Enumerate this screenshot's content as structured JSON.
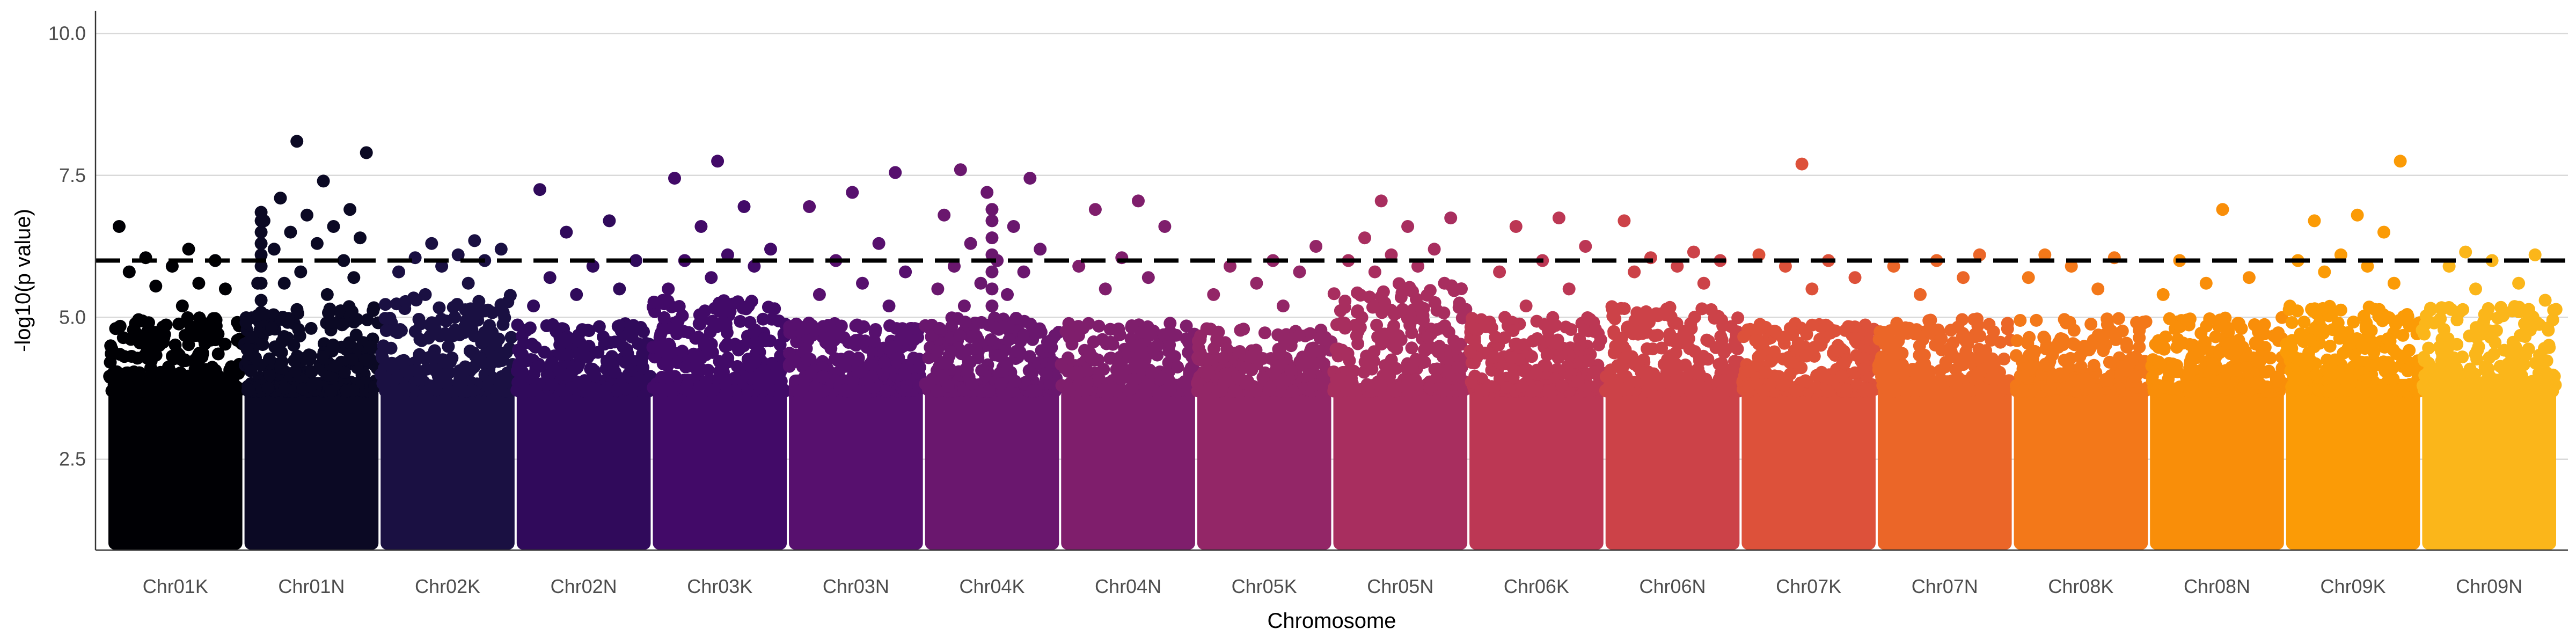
{
  "chart_data": {
    "type": "scatter",
    "title": "",
    "xlabel": "Chromosome",
    "ylabel": "-log10(p value)",
    "ylim": [
      0.9,
      10.4
    ],
    "y_ticks": [
      2.5,
      5.0,
      7.5,
      10.0
    ],
    "y_tick_labels": [
      "2.5",
      "5.0",
      "7.5",
      "10.0"
    ],
    "grid": "horizontal major lines",
    "legend": "none",
    "threshold": {
      "y": 6.0,
      "style": "dashed",
      "color": "#000000"
    },
    "categories": [
      "Chr01K",
      "Chr01N",
      "Chr02K",
      "Chr02N",
      "Chr03K",
      "Chr03N",
      "Chr04K",
      "Chr04N",
      "Chr05K",
      "Chr05N",
      "Chr06K",
      "Chr06N",
      "Chr07K",
      "Chr07N",
      "Chr08K",
      "Chr08N",
      "Chr09K",
      "Chr09N"
    ],
    "colors": [
      "#000004",
      "#0b0924",
      "#1a1042",
      "#300a5b",
      "#420a68",
      "#57106e",
      "#6a176e",
      "#7f1e6c",
      "#932667",
      "#a82e5f",
      "#bc3754",
      "#cc4248",
      "#dd513a",
      "#eb6628",
      "#f37819",
      "#f98e09",
      "#fb9b06",
      "#fbb61a"
    ],
    "series": [
      {
        "name": "Chr01K",
        "upper_cloud_max": 5.0,
        "peaks": [
          6.6,
          6.2,
          6.05,
          6.0,
          5.9,
          5.8,
          5.6,
          5.55,
          5.5,
          5.2
        ]
      },
      {
        "name": "Chr01N",
        "upper_cloud_max": 5.2,
        "peaks": [
          8.1,
          7.9,
          7.4,
          7.1,
          6.9,
          6.8,
          6.7,
          6.6,
          6.5,
          6.4,
          6.3,
          6.2,
          6.0,
          5.8,
          5.6,
          5.4,
          5.6,
          5.7
        ]
      },
      {
        "name": "Chr02K",
        "upper_cloud_max": 5.4,
        "peaks": [
          6.35,
          6.3,
          6.2,
          6.1,
          6.05,
          6.0,
          5.9,
          5.8,
          5.6,
          5.4
        ]
      },
      {
        "name": "Chr02N",
        "upper_cloud_max": 4.9,
        "peaks": [
          7.25,
          6.7,
          6.5,
          6.0,
          5.9,
          5.7,
          5.5,
          5.4,
          5.2
        ]
      },
      {
        "name": "Chr03K",
        "upper_cloud_max": 5.3,
        "peaks": [
          7.75,
          7.45,
          6.95,
          6.6,
          6.2,
          6.1,
          6.0,
          5.9,
          5.7,
          5.5
        ]
      },
      {
        "name": "Chr03N",
        "upper_cloud_max": 4.9,
        "peaks": [
          7.55,
          7.2,
          6.95,
          6.3,
          6.0,
          5.8,
          5.6,
          5.4,
          5.2
        ]
      },
      {
        "name": "Chr04K",
        "upper_cloud_max": 5.0,
        "peaks": [
          7.6,
          7.45,
          7.2,
          6.8,
          6.6,
          6.3,
          6.2,
          6.0,
          5.9,
          5.8,
          5.6,
          5.5,
          5.4,
          5.2
        ]
      },
      {
        "name": "Chr04N",
        "upper_cloud_max": 4.9,
        "peaks": [
          7.05,
          6.9,
          6.6,
          6.05,
          5.9,
          5.7,
          5.5
        ]
      },
      {
        "name": "Chr05K",
        "upper_cloud_max": 4.8,
        "peaks": [
          6.25,
          6.0,
          5.9,
          5.8,
          5.6,
          5.4,
          5.2
        ]
      },
      {
        "name": "Chr05N",
        "upper_cloud_max": 5.6,
        "peaks": [
          7.05,
          6.75,
          6.6,
          6.4,
          6.2,
          6.1,
          6.0,
          5.9,
          5.8,
          5.6
        ]
      },
      {
        "name": "Chr06K",
        "upper_cloud_max": 5.0,
        "peaks": [
          6.75,
          6.6,
          6.25,
          6.0,
          5.8,
          5.5,
          5.2
        ]
      },
      {
        "name": "Chr06N",
        "upper_cloud_max": 5.2,
        "peaks": [
          6.7,
          6.15,
          6.05,
          6.0,
          5.9,
          5.8,
          5.6
        ]
      },
      {
        "name": "Chr07K",
        "upper_cloud_max": 4.9,
        "peaks": [
          7.7,
          6.1,
          6.0,
          5.9,
          5.7,
          5.5
        ]
      },
      {
        "name": "Chr07N",
        "upper_cloud_max": 5.0,
        "peaks": [
          6.1,
          6.0,
          5.9,
          5.7,
          5.4
        ]
      },
      {
        "name": "Chr08K",
        "upper_cloud_max": 5.0,
        "peaks": [
          6.1,
          6.05,
          5.9,
          5.7,
          5.5
        ]
      },
      {
        "name": "Chr08N",
        "upper_cloud_max": 5.0,
        "peaks": [
          6.9,
          6.0,
          5.7,
          5.6,
          5.4
        ]
      },
      {
        "name": "Chr09K",
        "upper_cloud_max": 5.2,
        "peaks": [
          7.75,
          6.8,
          6.7,
          6.5,
          6.1,
          6.0,
          5.9,
          5.8,
          5.6
        ]
      },
      {
        "name": "Chr09N",
        "upper_cloud_max": 5.2,
        "peaks": [
          6.15,
          6.1,
          6.0,
          5.9,
          5.6,
          5.5,
          5.3
        ]
      }
    ]
  }
}
